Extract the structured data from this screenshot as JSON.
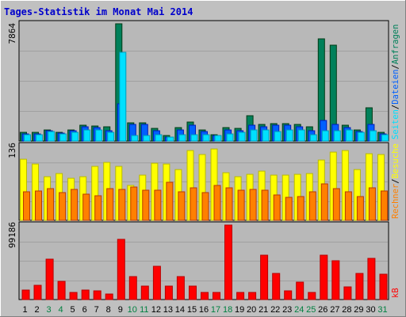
{
  "title": "Tages-Statistik im Monat Mai 2014",
  "colors": {
    "title": "#0000cc",
    "background": "#c0c0c0",
    "plot": "#b8b8b8",
    "grid": "#a0a0a0",
    "weekday": "#000000",
    "weekend": "#008040",
    "anfragen": "#00805a",
    "dateien": "#0060ff",
    "seiten": "#00e0ff",
    "besuche": "#ffff00",
    "rechner": "#ff8000",
    "kb": "#ff0000"
  },
  "chart_data": {
    "type": "bar",
    "categories": [
      "1",
      "2",
      "3",
      "4",
      "5",
      "6",
      "7",
      "8",
      "9",
      "10",
      "11",
      "12",
      "13",
      "14",
      "15",
      "16",
      "17",
      "18",
      "19",
      "20",
      "21",
      "22",
      "23",
      "24",
      "25",
      "26",
      "27",
      "28",
      "29",
      "30",
      "31"
    ],
    "weekend_days": [
      "3",
      "4",
      "10",
      "11",
      "17",
      "18",
      "24",
      "25",
      "31"
    ],
    "panels": [
      {
        "id": "top",
        "ymax_label": "7864",
        "ylim": [
          0,
          7864
        ],
        "legend": [
          {
            "label": "Anfragen",
            "color": "#00805a"
          },
          {
            "label": "Dateien",
            "color": "#0060ff"
          },
          {
            "label": "Seiten",
            "color": "#00e0ff"
          }
        ],
        "series": [
          {
            "name": "Anfragen",
            "color": "#00805a",
            "values": [
              560,
              560,
              770,
              600,
              770,
              1050,
              1010,
              980,
              7864,
              1200,
              1200,
              840,
              350,
              910,
              1260,
              770,
              420,
              910,
              840,
              1680,
              1120,
              1190,
              1190,
              1120,
              980,
              6860,
              6440,
              1050,
              770,
              2240,
              560
            ]
          },
          {
            "name": "Dateien",
            "color": "#0060ff",
            "values": [
              490,
              490,
              700,
              530,
              700,
              980,
              910,
              700,
              2520,
              1120,
              1120,
              700,
              280,
              770,
              1050,
              630,
              350,
              770,
              700,
              1050,
              980,
              1050,
              1050,
              980,
              700,
              1400,
              1120,
              910,
              630,
              1120,
              490
            ]
          },
          {
            "name": "Seiten",
            "color": "#00e0ff",
            "values": [
              420,
              420,
              630,
              490,
              560,
              770,
              770,
              560,
              5950,
              350,
              350,
              420,
              280,
              420,
              420,
              420,
              350,
              490,
              560,
              770,
              770,
              630,
              770,
              770,
              420,
              700,
              700,
              770,
              560,
              700,
              420
            ]
          }
        ]
      },
      {
        "id": "middle",
        "ymax_label": "136",
        "ylim": [
          0,
          136
        ],
        "legend": [
          {
            "label": "Rechner",
            "color": "#ff8000"
          },
          {
            "label": "Besuche",
            "color": "#ffff00"
          }
        ],
        "series": [
          {
            "name": "Besuche",
            "color": "#ffff00",
            "values": [
              112,
              102,
              80,
              86,
              77,
              80,
              98,
              106,
              98,
              63,
              82,
              104,
              102,
              92,
              128,
              120,
              130,
              87,
              80,
              84,
              90,
              83,
              82,
              84,
              85,
              110,
              125,
              128,
              93,
              122,
              120
            ]
          },
          {
            "name": "Rechner",
            "color": "#ff8000",
            "values": [
              52,
              54,
              58,
              50,
              56,
              48,
              45,
              58,
              57,
              61,
              55,
              55,
              69,
              52,
              60,
              50,
              64,
              60,
              55,
              56,
              55,
              47,
              42,
              44,
              52,
              66,
              58,
              52,
              43,
              60,
              54
            ]
          }
        ]
      },
      {
        "id": "bottom",
        "ymax_label": "99186",
        "ylim": [
          0,
          99186
        ],
        "legend": [
          {
            "label": "kB",
            "color": "#ff0000"
          }
        ],
        "series": [
          {
            "name": "kB",
            "color": "#ff0000",
            "values": [
              12700,
              19200,
              54300,
              24700,
              9500,
              13000,
              11600,
              7500,
              79700,
              30900,
              18000,
              44100,
              17800,
              30900,
              17800,
              9500,
              9500,
              99186,
              9500,
              9500,
              59500,
              35300,
              11700,
              22900,
              9500,
              59500,
              51200,
              16400,
              35300,
              55300,
              34100
            ]
          }
        ]
      }
    ]
  }
}
